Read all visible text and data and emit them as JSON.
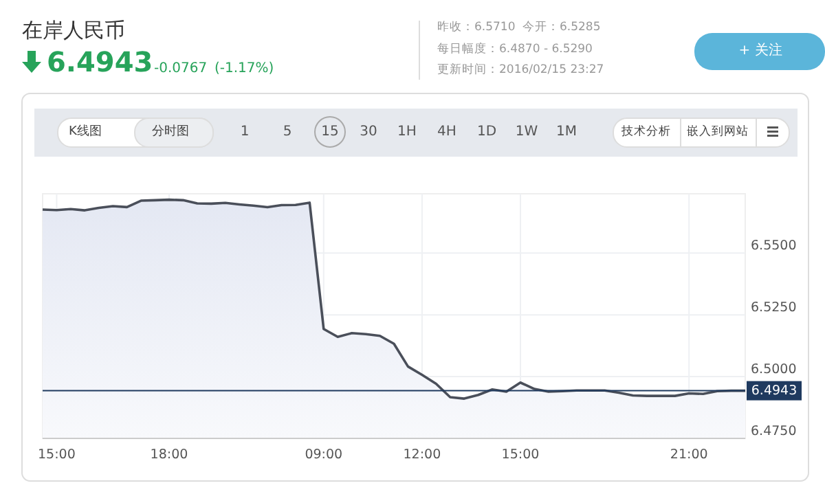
{
  "chart_data": {
    "type": "area",
    "title": "在岸人民币",
    "subtitle": "6.4943",
    "categories": [
      null,
      "15:00",
      null,
      null,
      null,
      null,
      null,
      null,
      null,
      "18:00",
      null,
      null,
      null,
      null,
      null,
      null,
      null,
      null,
      null,
      null,
      "09:00",
      null,
      null,
      null,
      null,
      null,
      null,
      "12:00",
      null,
      null,
      null,
      null,
      null,
      null,
      "15:00",
      null,
      null,
      null,
      null,
      null,
      null,
      null,
      null,
      null,
      null,
      null,
      "21:00",
      null,
      null,
      null,
      null
    ],
    "values": [
      6.5676,
      6.5674,
      6.5678,
      6.5673,
      6.5683,
      6.569,
      6.5686,
      6.5712,
      6.5714,
      6.5716,
      6.5714,
      6.5701,
      6.57,
      6.5703,
      6.5697,
      6.5692,
      6.5686,
      6.5694,
      6.5695,
      6.5704,
      6.5193,
      6.5161,
      6.5176,
      6.5172,
      6.5165,
      6.5133,
      6.5041,
      6.5007,
      6.4971,
      6.4917,
      6.4911,
      6.4926,
      6.4948,
      6.4939,
      6.4976,
      6.495,
      6.4939,
      6.4941,
      6.4944,
      6.4944,
      6.4944,
      6.4935,
      6.4924,
      6.4922,
      6.4922,
      6.4922,
      6.4932,
      6.493,
      6.4941,
      6.4943,
      6.4943
    ],
    "color": "#4a4f5a",
    "ylim": [
      6.475,
      6.574
    ],
    "yticks": [
      {
        "value": 6.475,
        "label": "6.4750"
      },
      {
        "value": 6.5,
        "label": "6.5000"
      },
      {
        "value": 6.525,
        "label": "6.5250"
      },
      {
        "value": 6.55,
        "label": "6.5500"
      }
    ],
    "grid": true,
    "ref_lines": [
      {
        "axis": "y",
        "value": 6.4943,
        "label": "6.4943",
        "color": "#1f3a5f"
      }
    ],
    "annotations": [
      "-0.0767",
      "(-1.17%)",
      "昨收：6.5710",
      "今开：6.5285",
      "每日幅度：6.4870 - 6.5290",
      "更新时间：2016/02/15 23:27",
      "+ 关注",
      "K线图",
      "分时图",
      "1",
      "5",
      "15",
      "30",
      "1H",
      "4H",
      "1D",
      "1W",
      "1M",
      "技术分析",
      "嵌入到网站"
    ]
  }
}
